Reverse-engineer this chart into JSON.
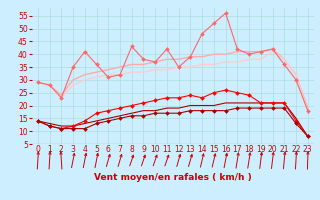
{
  "x": [
    0,
    1,
    2,
    3,
    4,
    5,
    6,
    7,
    8,
    9,
    10,
    11,
    12,
    13,
    14,
    15,
    16,
    17,
    18,
    19,
    20,
    21,
    22,
    23
  ],
  "series": [
    {
      "color": "#ff0000",
      "linewidth": 0.8,
      "marker": "D",
      "markersize": 2.0,
      "y": [
        14,
        12,
        11,
        12,
        14,
        17,
        18,
        19,
        20,
        21,
        22,
        23,
        23,
        24,
        23,
        25,
        26,
        25,
        24,
        21,
        21,
        21,
        14,
        8
      ]
    },
    {
      "color": "#aa0000",
      "linewidth": 0.8,
      "marker": "D",
      "markersize": 2.0,
      "y": [
        14,
        12,
        11,
        11,
        11,
        13,
        14,
        15,
        16,
        16,
        17,
        17,
        17,
        18,
        18,
        18,
        18,
        19,
        19,
        19,
        19,
        19,
        13,
        8
      ]
    },
    {
      "color": "#aa0000",
      "linewidth": 0.8,
      "marker": null,
      "markersize": 0,
      "y": [
        14,
        13,
        12,
        12,
        13,
        14,
        15,
        16,
        17,
        18,
        18,
        19,
        19,
        20,
        20,
        20,
        21,
        21,
        21,
        21,
        21,
        21,
        15,
        8
      ]
    },
    {
      "color": "#ff6666",
      "linewidth": 0.8,
      "marker": "D",
      "markersize": 2.0,
      "y": [
        29,
        28,
        23,
        35,
        41,
        36,
        31,
        32,
        43,
        38,
        37,
        42,
        35,
        39,
        48,
        52,
        56,
        42,
        40,
        41,
        42,
        36,
        30,
        18
      ]
    },
    {
      "color": "#ffaaaa",
      "linewidth": 1.0,
      "marker": null,
      "markersize": 0,
      "y": [
        29,
        28,
        24,
        30,
        32,
        33,
        34,
        35,
        36,
        36,
        37,
        38,
        38,
        39,
        39,
        40,
        40,
        41,
        41,
        41,
        42,
        38,
        32,
        19
      ]
    },
    {
      "color": "#ffcccc",
      "linewidth": 1.0,
      "marker": null,
      "markersize": 0,
      "y": [
        29,
        28,
        23,
        28,
        30,
        31,
        32,
        32,
        33,
        33,
        34,
        34,
        35,
        35,
        36,
        36,
        37,
        37,
        38,
        38,
        41,
        38,
        32,
        18
      ]
    }
  ],
  "xlabel": "Vent moyen/en rafales ( km/h )",
  "ylim": [
    5,
    58
  ],
  "xlim": [
    -0.5,
    23.5
  ],
  "yticks": [
    5,
    10,
    15,
    20,
    25,
    30,
    35,
    40,
    45,
    50,
    55
  ],
  "xticks": [
    0,
    1,
    2,
    3,
    4,
    5,
    6,
    7,
    8,
    9,
    10,
    11,
    12,
    13,
    14,
    15,
    16,
    17,
    18,
    19,
    20,
    21,
    22,
    23
  ],
  "bg_color": "#cceeff",
  "grid_color": "#aadddd",
  "arrow_color": "#cc0000",
  "xlabel_color": "#cc0000",
  "tick_color": "#cc0000",
  "xlabel_fontsize": 6.5,
  "tick_fontsize": 5.5,
  "arrow_angles": [
    80,
    80,
    100,
    60,
    60,
    60,
    50,
    50,
    45,
    45,
    45,
    45,
    50,
    50,
    55,
    55,
    60,
    65,
    65,
    70,
    70,
    75,
    80,
    85
  ]
}
